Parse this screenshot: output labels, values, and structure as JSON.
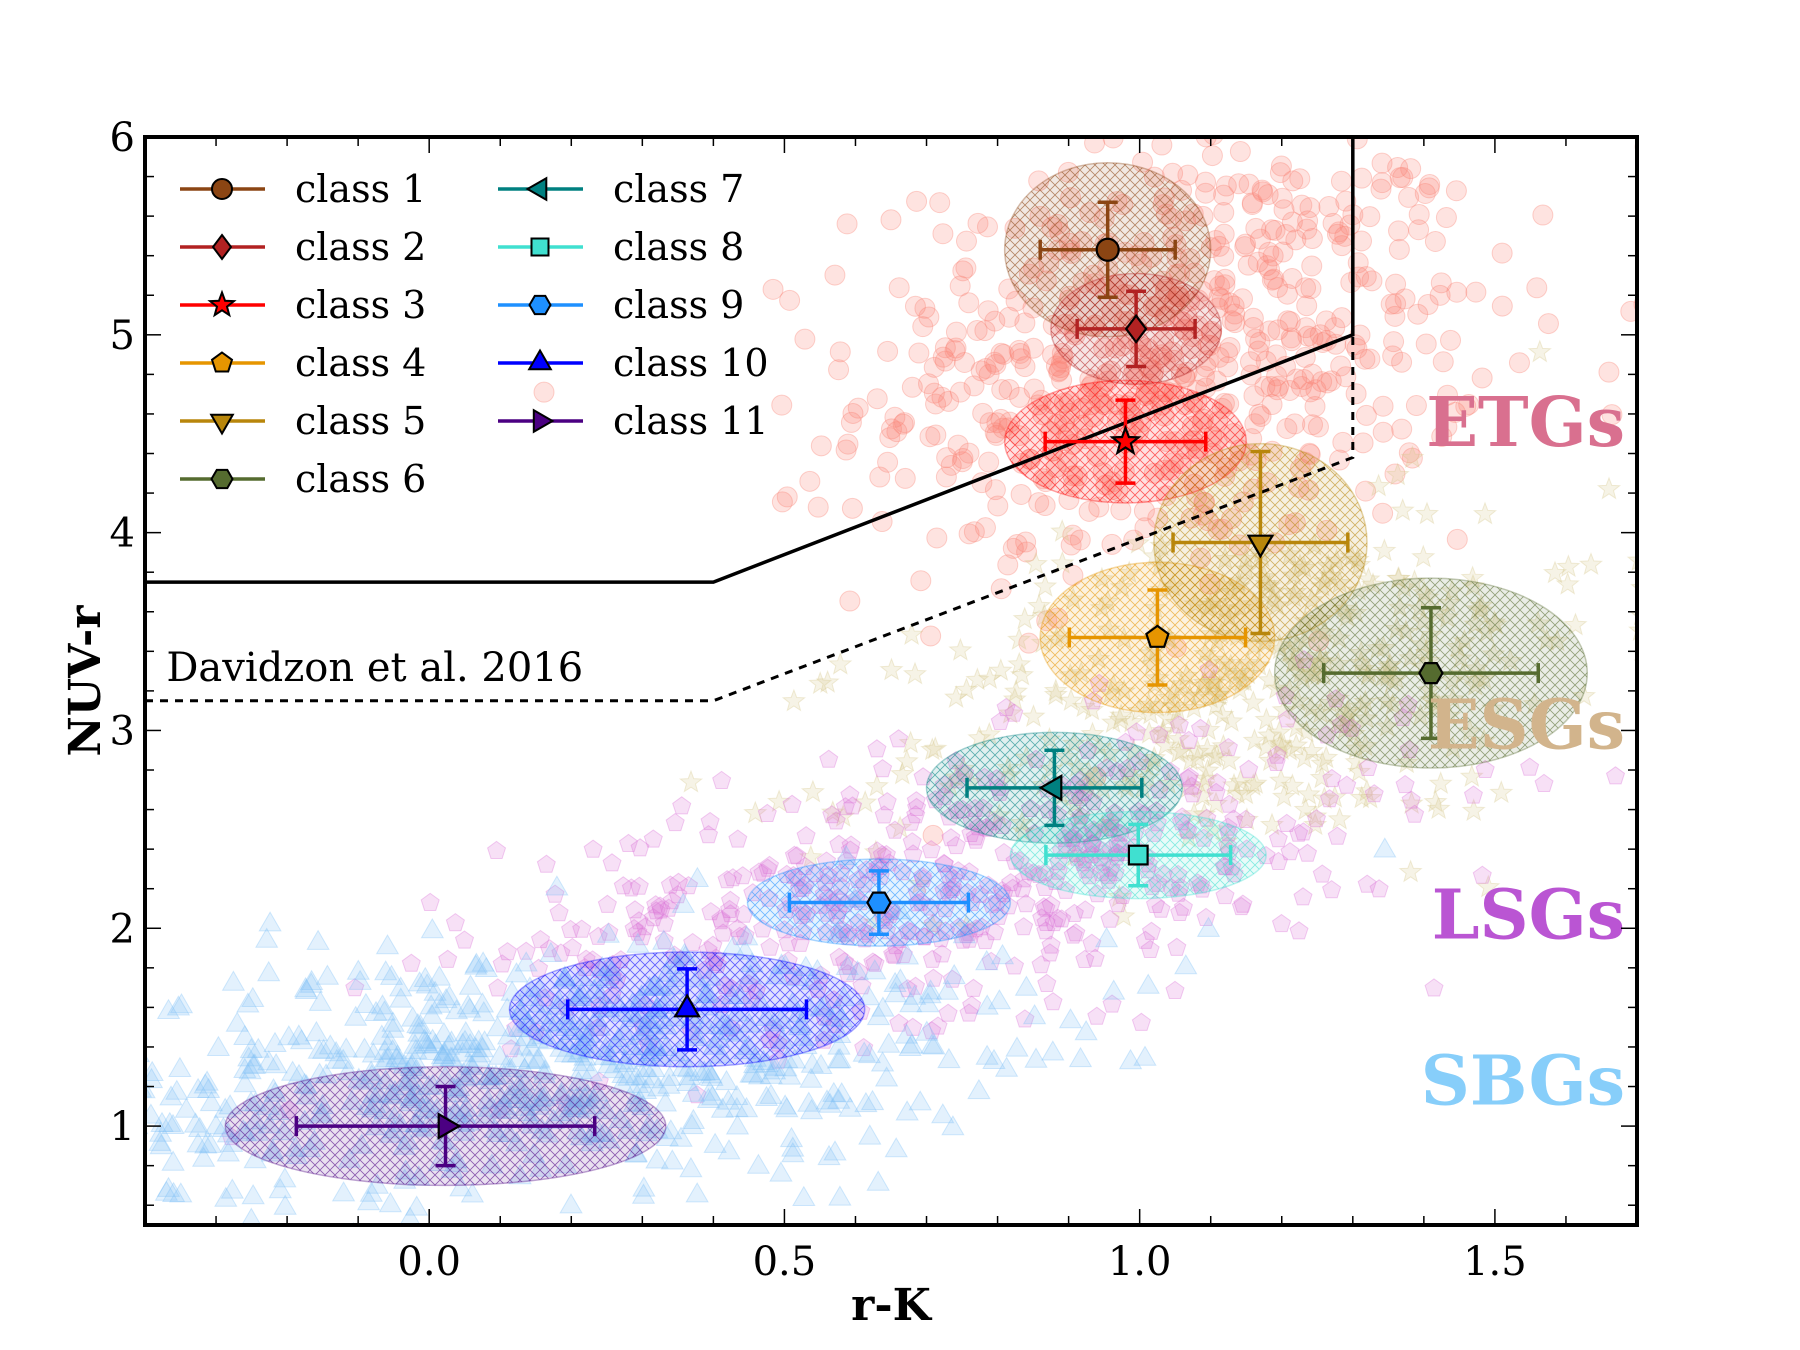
{
  "chart_data": {
    "type": "scatter",
    "xlabel": "r-K",
    "ylabel": "NUV-r",
    "xlim": [
      -0.4,
      1.7
    ],
    "ylim": [
      0.5,
      6.0
    ],
    "xticks": [
      "0.0",
      "0.5",
      "1.0",
      "1.5"
    ],
    "xtick_values": [
      0.0,
      0.5,
      1.0,
      1.5
    ],
    "yticks": [
      "1",
      "2",
      "3",
      "4",
      "5",
      "6"
    ],
    "ytick_values": [
      1,
      2,
      3,
      4,
      5,
      6
    ],
    "grid": false,
    "legend_placement": "top-left",
    "series": [
      {
        "name": "class 1",
        "marker": "circle",
        "color": "#8B4513",
        "x": 0.955,
        "y": 5.43,
        "xerr": 0.095,
        "yerr": 0.24,
        "ellipse": [
          0.145,
          0.44
        ]
      },
      {
        "name": "class 2",
        "marker": "diamond",
        "color": "#B22222",
        "x": 0.995,
        "y": 5.03,
        "xerr": 0.083,
        "yerr": 0.19,
        "ellipse": [
          0.12,
          0.28
        ]
      },
      {
        "name": "class 3",
        "marker": "star",
        "color": "#FF0000",
        "x": 0.98,
        "y": 4.46,
        "xerr": 0.113,
        "yerr": 0.21,
        "ellipse": [
          0.17,
          0.31
        ]
      },
      {
        "name": "class 4",
        "marker": "pentagon",
        "color": "#E69500",
        "x": 1.025,
        "y": 3.47,
        "xerr": 0.124,
        "yerr": 0.24,
        "ellipse": [
          0.165,
          0.38
        ]
      },
      {
        "name": "class 5",
        "marker": "triangle-down",
        "color": "#B8860B",
        "x": 1.17,
        "y": 3.95,
        "xerr": 0.123,
        "yerr": 0.46,
        "ellipse": [
          0.15,
          0.5
        ]
      },
      {
        "name": "class 6",
        "marker": "hexagon",
        "color": "#556B2F",
        "x": 1.41,
        "y": 3.29,
        "xerr": 0.151,
        "yerr": 0.33,
        "ellipse": [
          0.22,
          0.48
        ]
      },
      {
        "name": "class 7",
        "marker": "triangle-left",
        "color": "#008080",
        "x": 0.88,
        "y": 2.71,
        "xerr": 0.123,
        "yerr": 0.19,
        "ellipse": [
          0.18,
          0.28
        ]
      },
      {
        "name": "class 8",
        "marker": "square",
        "color": "#40E0D0",
        "x": 0.998,
        "y": 2.37,
        "xerr": 0.13,
        "yerr": 0.155,
        "ellipse": [
          0.18,
          0.22
        ]
      },
      {
        "name": "class 9",
        "marker": "hexagon",
        "color": "#1E90FF",
        "x": 0.633,
        "y": 2.13,
        "xerr": 0.126,
        "yerr": 0.16,
        "ellipse": [
          0.185,
          0.22
        ]
      },
      {
        "name": "class 10",
        "marker": "triangle-up",
        "color": "#0000FF",
        "x": 0.363,
        "y": 1.59,
        "xerr": 0.168,
        "yerr": 0.205,
        "ellipse": [
          0.25,
          0.29
        ]
      },
      {
        "name": "class 11",
        "marker": "triangle-right",
        "color": "#4B0082",
        "x": 0.023,
        "y": 1.0,
        "xerr": 0.21,
        "yerr": 0.2,
        "ellipse": [
          0.31,
          0.3
        ]
      }
    ],
    "populations": [
      {
        "name": "ETGs",
        "marker": "circle",
        "color": "#FA8072",
        "label_color": "#D9708F",
        "label_y": 4.55
      },
      {
        "name": "ESGs",
        "marker": "star",
        "color": "#D8C98E",
        "label_color": "#D2B48C",
        "label_y": 3.02
      },
      {
        "name": "LSGs",
        "marker": "pentagon",
        "color": "#DA70D6",
        "label_color": "#BA55D3",
        "label_y": 2.06
      },
      {
        "name": "SBGs",
        "marker": "triangle-up",
        "color": "#7EC0F5",
        "label_color": "#87CEFA",
        "label_y": 1.22
      }
    ],
    "boundaries": [
      {
        "style": "solid",
        "points": [
          [
            -0.4,
            3.75
          ],
          [
            0.4,
            3.75
          ],
          [
            1.3,
            5.0
          ],
          [
            1.3,
            6.0
          ]
        ]
      },
      {
        "style": "dashed",
        "points": [
          [
            -0.4,
            3.15
          ],
          [
            0.4,
            3.15
          ],
          [
            1.3,
            4.38
          ],
          [
            1.3,
            5.0
          ]
        ]
      }
    ],
    "annotation": {
      "text": "Davidzon et al. 2016",
      "x": -0.37,
      "y": 3.2
    }
  }
}
